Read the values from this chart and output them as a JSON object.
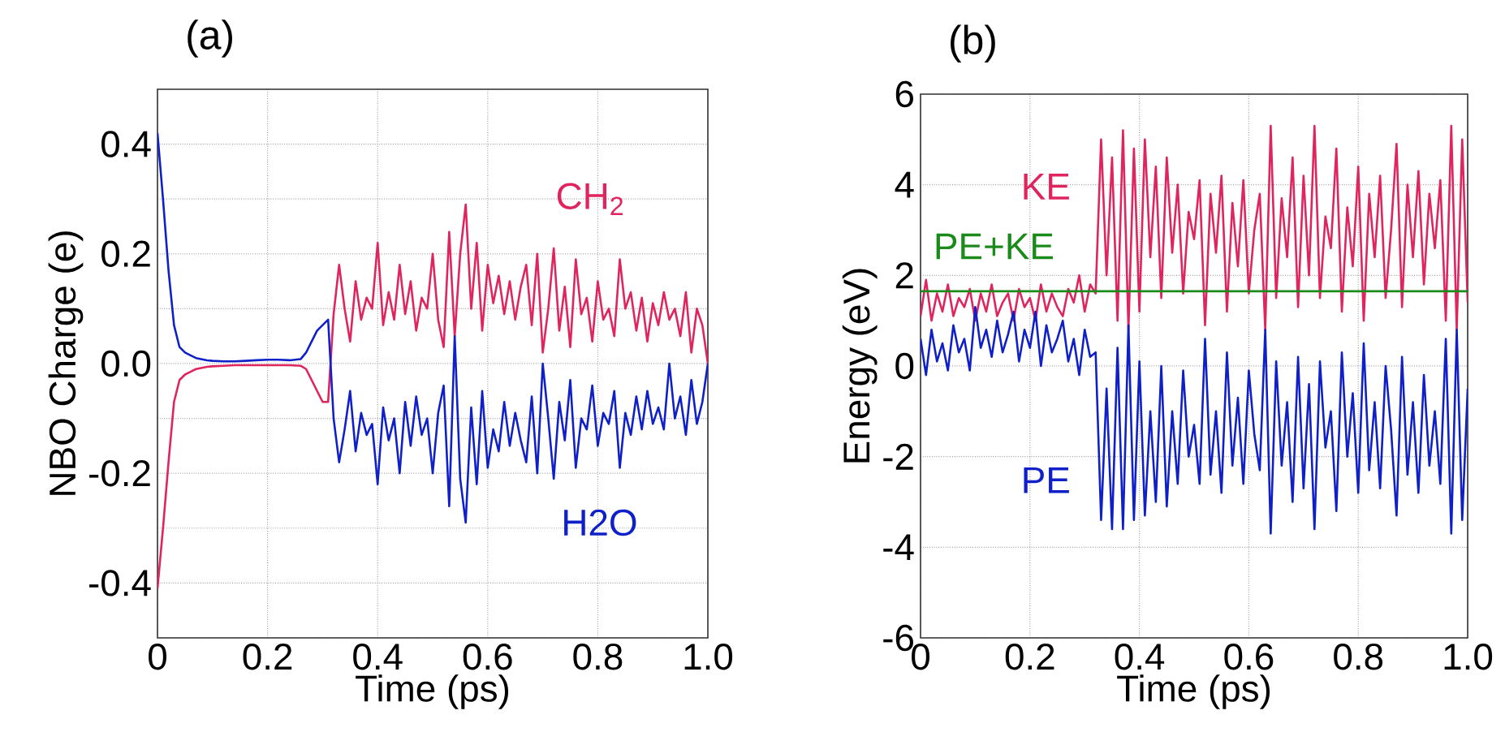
{
  "chart_data": [
    {
      "type": "line",
      "title": "(a)",
      "xlabel": "Time (ps)",
      "ylabel": "NBO Charge (e)",
      "x": [
        0,
        0.01,
        0.02,
        0.03,
        0.04,
        0.05,
        0.06,
        0.07,
        0.08,
        0.09,
        0.1,
        0.12,
        0.14,
        0.16,
        0.18,
        0.2,
        0.22,
        0.24,
        0.26,
        0.27,
        0.28,
        0.29,
        0.3,
        0.31,
        0.32,
        0.33,
        0.34,
        0.35,
        0.36,
        0.37,
        0.38,
        0.39,
        0.4,
        0.41,
        0.42,
        0.43,
        0.44,
        0.45,
        0.46,
        0.47,
        0.48,
        0.49,
        0.5,
        0.51,
        0.52,
        0.53,
        0.54,
        0.55,
        0.56,
        0.57,
        0.58,
        0.59,
        0.6,
        0.61,
        0.62,
        0.63,
        0.64,
        0.65,
        0.66,
        0.67,
        0.68,
        0.69,
        0.7,
        0.71,
        0.72,
        0.73,
        0.74,
        0.75,
        0.76,
        0.77,
        0.78,
        0.79,
        0.8,
        0.81,
        0.82,
        0.83,
        0.84,
        0.85,
        0.86,
        0.87,
        0.88,
        0.89,
        0.9,
        0.91,
        0.92,
        0.93,
        0.94,
        0.95,
        0.96,
        0.97,
        0.98,
        0.99,
        1.0
      ],
      "series": [
        {
          "name": "CH$_{2}$",
          "color": "#e0245e",
          "values": [
            -0.41,
            -0.3,
            -0.18,
            -0.07,
            -0.03,
            -0.02,
            -0.015,
            -0.01,
            -0.008,
            -0.006,
            -0.005,
            -0.004,
            -0.003,
            -0.003,
            -0.003,
            -0.003,
            -0.003,
            -0.003,
            -0.004,
            -0.01,
            -0.03,
            -0.05,
            -0.07,
            -0.07,
            0.09,
            0.18,
            0.1,
            0.04,
            0.15,
            0.08,
            0.12,
            0.1,
            0.22,
            0.07,
            0.13,
            0.08,
            0.18,
            0.09,
            0.15,
            0.06,
            0.12,
            0.1,
            0.2,
            0.08,
            0.03,
            0.24,
            0.05,
            0.2,
            0.29,
            0.1,
            0.22,
            0.06,
            0.18,
            0.11,
            0.16,
            0.09,
            0.15,
            0.08,
            0.14,
            0.18,
            0.07,
            0.2,
            0.02,
            0.1,
            0.21,
            0.06,
            0.14,
            0.03,
            0.19,
            0.09,
            0.12,
            0.04,
            0.15,
            0.08,
            0.1,
            0.05,
            0.19,
            0.1,
            0.13,
            0.06,
            0.12,
            0.04,
            0.11,
            0.07,
            0.13,
            0.08,
            0.1,
            0.05,
            0.13,
            0.02,
            0.1,
            0.07,
            0.0
          ]
        },
        {
          "name": "H2O",
          "color": "#1020c8",
          "values": [
            0.42,
            0.3,
            0.17,
            0.07,
            0.03,
            0.02,
            0.015,
            0.01,
            0.008,
            0.006,
            0.005,
            0.004,
            0.004,
            0.005,
            0.006,
            0.007,
            0.007,
            0.006,
            0.008,
            0.02,
            0.04,
            0.06,
            0.07,
            0.08,
            -0.1,
            -0.18,
            -0.12,
            -0.05,
            -0.16,
            -0.09,
            -0.13,
            -0.11,
            -0.22,
            -0.08,
            -0.14,
            -0.1,
            -0.2,
            -0.07,
            -0.15,
            -0.06,
            -0.13,
            -0.1,
            -0.2,
            -0.09,
            -0.04,
            -0.26,
            0.05,
            -0.21,
            -0.29,
            -0.08,
            -0.22,
            -0.05,
            -0.19,
            -0.12,
            -0.16,
            -0.07,
            -0.15,
            -0.09,
            -0.14,
            -0.18,
            -0.06,
            -0.2,
            0.0,
            -0.1,
            -0.21,
            -0.07,
            -0.14,
            -0.03,
            -0.19,
            -0.1,
            -0.12,
            -0.04,
            -0.15,
            -0.09,
            -0.11,
            -0.05,
            -0.19,
            -0.09,
            -0.13,
            -0.06,
            -0.12,
            -0.05,
            -0.11,
            -0.08,
            -0.12,
            0.0,
            -0.1,
            -0.06,
            -0.13,
            -0.03,
            -0.11,
            -0.07,
            0.0
          ]
        }
      ],
      "xlim": [
        0,
        1
      ],
      "ylim": [
        -0.5,
        0.5
      ],
      "xticks": [
        0,
        0.2,
        0.4,
        0.6,
        0.8,
        {
          "value": 1,
          "label": "1.0"
        }
      ],
      "yticks": [
        {
          "value": -0.5,
          "label": null
        },
        -0.4,
        {
          "value": -0.3,
          "label": null
        },
        -0.2,
        {
          "value": -0.1,
          "label": null
        },
        {
          "value": 0,
          "label": "0.0"
        },
        {
          "value": 0.1,
          "label": null
        },
        0.2,
        {
          "value": 0.3,
          "label": null
        },
        0.4,
        {
          "value": 0.5,
          "label": null
        }
      ],
      "grid": true,
      "marker": "none",
      "line_style": "solid"
    },
    {
      "type": "line",
      "title": "(b)",
      "xlabel": "Time (ps)",
      "ylabel": "Energy (eV)",
      "x": [
        0,
        0.01,
        0.02,
        0.03,
        0.04,
        0.05,
        0.06,
        0.07,
        0.08,
        0.09,
        0.1,
        0.11,
        0.12,
        0.13,
        0.14,
        0.15,
        0.16,
        0.17,
        0.18,
        0.19,
        0.2,
        0.21,
        0.22,
        0.23,
        0.24,
        0.25,
        0.26,
        0.27,
        0.28,
        0.29,
        0.3,
        0.31,
        0.32,
        0.33,
        0.34,
        0.35,
        0.36,
        0.37,
        0.38,
        0.39,
        0.4,
        0.41,
        0.42,
        0.43,
        0.44,
        0.45,
        0.46,
        0.47,
        0.48,
        0.49,
        0.5,
        0.51,
        0.52,
        0.53,
        0.54,
        0.55,
        0.56,
        0.57,
        0.58,
        0.59,
        0.6,
        0.61,
        0.62,
        0.63,
        0.64,
        0.65,
        0.66,
        0.67,
        0.68,
        0.69,
        0.7,
        0.71,
        0.72,
        0.73,
        0.74,
        0.75,
        0.76,
        0.77,
        0.78,
        0.79,
        0.8,
        0.81,
        0.82,
        0.83,
        0.84,
        0.85,
        0.86,
        0.87,
        0.88,
        0.89,
        0.9,
        0.91,
        0.92,
        0.93,
        0.94,
        0.95,
        0.96,
        0.97,
        0.98,
        0.99,
        1.0
      ],
      "series": [
        {
          "name": "KE",
          "color": "#e0245e",
          "values": [
            1.1,
            1.9,
            1.0,
            1.6,
            1.2,
            1.8,
            1.1,
            1.5,
            1.3,
            1.7,
            1.0,
            1.6,
            1.2,
            1.8,
            1.1,
            1.4,
            1.6,
            1.0,
            1.7,
            1.3,
            1.5,
            1.0,
            1.8,
            1.2,
            1.6,
            1.3,
            1.1,
            1.7,
            1.4,
            2.0,
            1.2,
            1.8,
            1.6,
            5.0,
            2.0,
            4.6,
            1.0,
            5.2,
            0.8,
            4.8,
            1.2,
            5.0,
            2.4,
            4.4,
            1.5,
            4.6,
            2.5,
            4.0,
            1.6,
            3.4,
            2.8,
            4.1,
            0.9,
            3.8,
            2.5,
            4.2,
            1.2,
            3.6,
            2.2,
            4.1,
            1.6,
            3.0,
            3.8,
            0.8,
            5.3,
            1.5,
            3.7,
            2.4,
            4.6,
            1.3,
            4.2,
            2.0,
            5.3,
            1.5,
            3.3,
            2.6,
            4.8,
            1.2,
            3.5,
            2.2,
            4.4,
            1.0,
            3.8,
            2.4,
            4.2,
            1.5,
            3.0,
            4.9,
            1.3,
            4.0,
            2.4,
            4.3,
            1.8,
            3.8,
            2.6,
            4.1,
            1.0,
            5.3,
            0.8,
            5.0,
            1.4
          ]
        },
        {
          "name": "PE",
          "color": "#1020c8",
          "values": [
            0.6,
            -0.2,
            0.8,
            0.1,
            0.5,
            -0.1,
            0.9,
            0.3,
            0.6,
            -0.1,
            1.3,
            0.4,
            0.8,
            0.2,
            1.0,
            0.3,
            0.7,
            1.2,
            0.1,
            0.8,
            0.4,
            1.2,
            0.0,
            0.9,
            0.3,
            0.6,
            1.0,
            0.1,
            0.6,
            -0.2,
            0.8,
            0.2,
            0.3,
            -3.4,
            -0.5,
            -3.6,
            0.4,
            -3.6,
            0.9,
            -3.4,
            0.1,
            -3.3,
            -1.0,
            -3.0,
            0.0,
            -3.1,
            -1.0,
            -2.6,
            -0.1,
            -2.0,
            -1.3,
            -2.6,
            0.6,
            -2.4,
            -1.0,
            -2.8,
            0.3,
            -2.2,
            -0.7,
            -2.6,
            -0.1,
            -1.5,
            -2.3,
            0.8,
            -3.7,
            0.1,
            -2.2,
            -0.8,
            -3.0,
            0.2,
            -2.7,
            -0.4,
            -3.6,
            0.1,
            -1.8,
            -1.0,
            -3.2,
            0.3,
            -2.0,
            -0.6,
            -2.8,
            0.5,
            -2.3,
            -0.8,
            -2.7,
            0.0,
            -1.4,
            -3.3,
            0.2,
            -2.4,
            -0.8,
            -2.8,
            -0.2,
            -2.2,
            -1.0,
            -2.6,
            0.6,
            -3.7,
            0.8,
            -3.4,
            -0.5
          ]
        },
        {
          "name": "PE+KE",
          "color": "#1a8a1a",
          "x": [
            0,
            1
          ],
          "values": [
            1.65,
            1.65
          ]
        }
      ],
      "xlim": [
        0,
        1
      ],
      "ylim": [
        -6,
        6
      ],
      "xticks": [
        0,
        0.2,
        0.4,
        0.6,
        0.8,
        {
          "value": 1,
          "label": "1.0"
        }
      ],
      "yticks": [
        -6,
        -4,
        -2,
        0,
        2,
        4,
        6
      ],
      "grid": true,
      "marker": "none",
      "line_style": "solid"
    }
  ]
}
